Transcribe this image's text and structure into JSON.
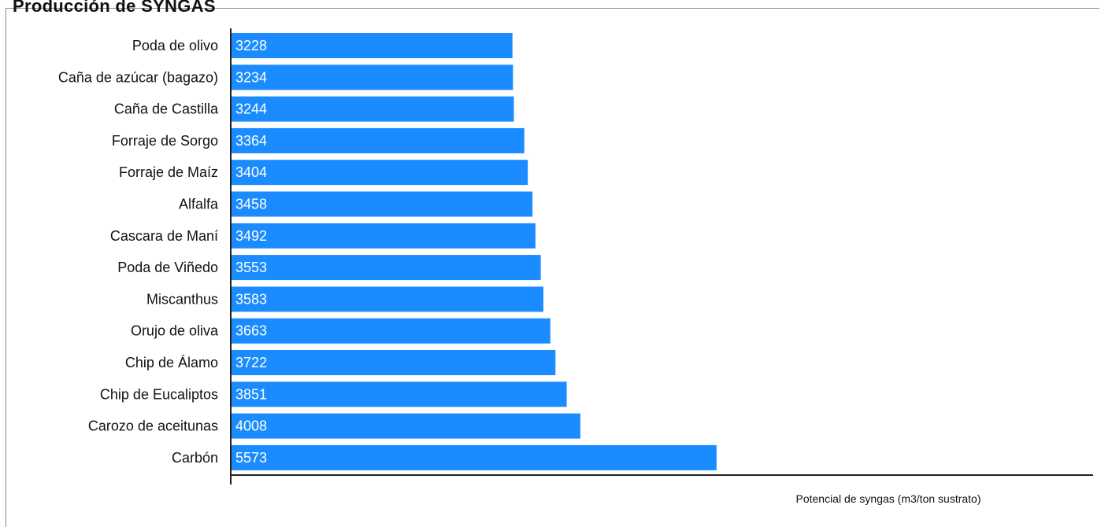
{
  "panel": {
    "title": "Producción de SYNGAS"
  },
  "chart_data": {
    "type": "bar",
    "orientation": "horizontal",
    "categories": [
      "Poda de olivo",
      "Caña de azúcar (bagazo)",
      "Caña de Castilla",
      "Forraje de Sorgo",
      "Forraje de Maíz",
      "Alfalfa",
      "Cascara de Maní",
      "Poda de Viñedo",
      "Miscanthus",
      "Orujo de oliva",
      "Chip de Álamo",
      "Chip de Eucaliptos",
      "Carozo de aceitunas",
      "Carbón"
    ],
    "values": [
      3228,
      3234,
      3244,
      3364,
      3404,
      3458,
      3492,
      3553,
      3583,
      3663,
      3722,
      3851,
      4008,
      5573
    ],
    "xlabel": "Potencial de syngas (m3/ton sustrato)",
    "ylabel": "",
    "xlim": [
      0,
      9900
    ],
    "data_labels": true,
    "grid": false,
    "legend": "none",
    "bar_color": "#1a8cff"
  }
}
